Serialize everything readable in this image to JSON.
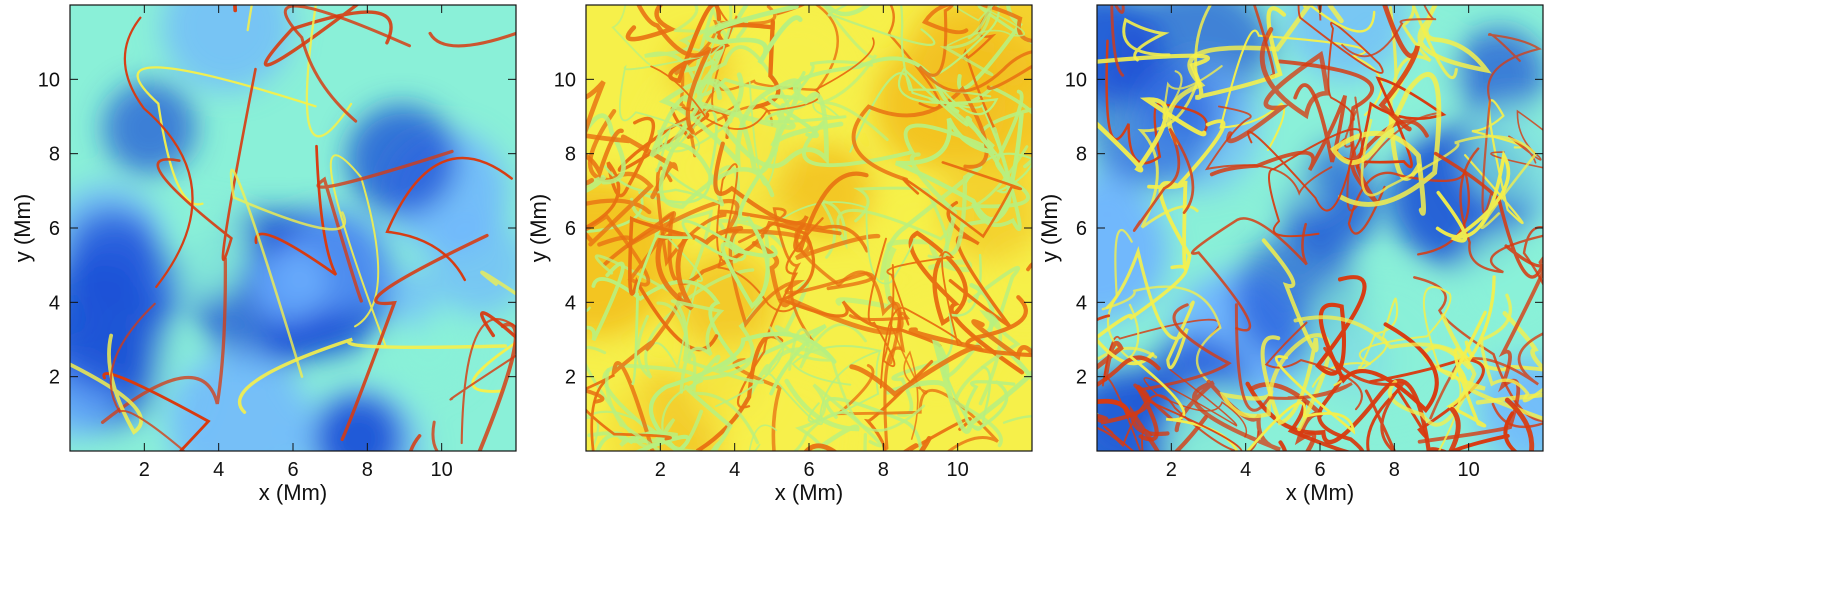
{
  "chart_data": [
    {
      "type": "heatmap",
      "title": "",
      "xlabel": "x (Mm)",
      "ylabel": "y (Mm)",
      "xlim": [
        0,
        12
      ],
      "ylim": [
        0,
        12
      ],
      "xticks": [
        2,
        4,
        6,
        8,
        10
      ],
      "yticks": [
        2,
        4,
        6,
        8,
        10
      ],
      "colormap": "jet",
      "dominant_colors": [
        "#1a4fd6",
        "#6fb3ff",
        "#8af0d8",
        "#f6f04a",
        "#d83a10"
      ],
      "pattern": "cellular network of thin red lanes bounding blue cells"
    },
    {
      "type": "heatmap",
      "title": "",
      "xlabel": "x (Mm)",
      "ylabel": "y (Mm)",
      "xlim": [
        0,
        12
      ],
      "ylim": [
        0,
        12
      ],
      "xticks": [
        2,
        4,
        6,
        8,
        10
      ],
      "yticks": [
        2,
        4,
        6,
        8,
        10
      ],
      "colormap": "jet",
      "dominant_colors": [
        "#f6f04a",
        "#f2c020",
        "#e87012",
        "#c82808",
        "#b8f080"
      ],
      "pattern": "turbulent swirling yellow and red filaments"
    },
    {
      "type": "heatmap",
      "title": "",
      "xlabel": "x (Mm)",
      "ylabel": "y (Mm)",
      "xlim": [
        0,
        12
      ],
      "ylim": [
        0,
        12
      ],
      "xticks": [
        2,
        4,
        6,
        8,
        10
      ],
      "yticks": [
        2,
        4,
        6,
        8,
        10
      ],
      "colormap": "jet",
      "dominant_colors": [
        "#1a4fd6",
        "#6fb3ff",
        "#8af0d8",
        "#f6f04a",
        "#d83a10"
      ],
      "pattern": "mixed cells and swirling red filaments"
    }
  ]
}
